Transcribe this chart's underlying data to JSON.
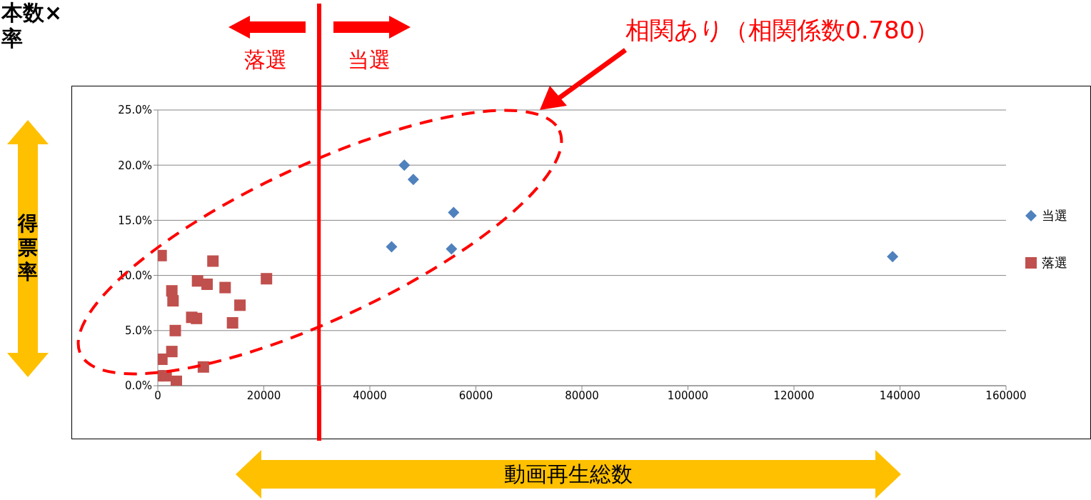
{
  "chart_data": {
    "type": "scatter",
    "title": "本数×\n率",
    "xlabel": "動画再生総数",
    "ylabel": "得票率",
    "xlim": [
      0,
      160000
    ],
    "xticks": [
      0,
      20000,
      40000,
      60000,
      80000,
      100000,
      120000,
      140000,
      160000
    ],
    "ylim": [
      0,
      25
    ],
    "yticks": [
      {
        "value": 0,
        "label": "0.0%"
      },
      {
        "value": 5,
        "label": "5.0%"
      },
      {
        "value": 10,
        "label": "10.0%"
      },
      {
        "value": 15,
        "label": "15.0%"
      },
      {
        "value": 20,
        "label": "20.0%"
      },
      {
        "value": 25,
        "label": "25.0%"
      }
    ],
    "grid": "y",
    "legend": "right",
    "series": [
      {
        "name": "当選",
        "color": "#4f81bd",
        "marker": "diamond",
        "x": [
          46500,
          48200,
          55800,
          44100,
          55400,
          138600
        ],
        "values": [
          20.0,
          18.7,
          15.7,
          12.6,
          12.4,
          11.7
        ]
      },
      {
        "name": "落選",
        "color": "#c0504d",
        "marker": "square",
        "x": [
          630,
          10400,
          20500,
          7500,
          9300,
          12700,
          2650,
          2870,
          15500,
          6400,
          7300,
          14100,
          3300,
          2650,
          770,
          8600,
          90,
          1570,
          3500
        ],
        "values": [
          11.8,
          11.3,
          9.7,
          9.5,
          9.2,
          8.9,
          8.6,
          7.7,
          7.3,
          6.2,
          6.1,
          5.7,
          5.0,
          3.1,
          2.4,
          1.7,
          0.9,
          0.9,
          0.4
        ]
      }
    ],
    "ref_lines": [
      {
        "axis": "x",
        "value": 30400,
        "color": "#ff0000"
      }
    ],
    "annotations": [
      "落選",
      "当選",
      "相関あり（相関係数0.780）"
    ]
  }
}
